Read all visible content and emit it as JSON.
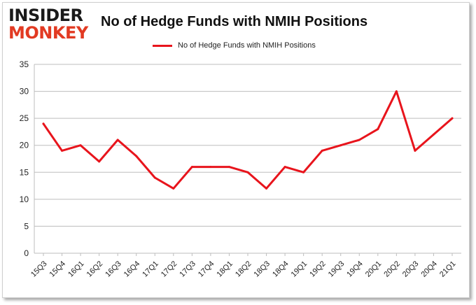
{
  "logo": {
    "line1": "INSIDER",
    "line2": "MONKEY"
  },
  "chart_data": {
    "type": "line",
    "title": "No of Hedge Funds with NMIH Positions",
    "categories": [
      "15Q3",
      "15Q4",
      "16Q1",
      "16Q2",
      "16Q3",
      "16Q4",
      "17Q1",
      "17Q2",
      "17Q3",
      "17Q4",
      "18Q1",
      "18Q2",
      "18Q3",
      "18Q4",
      "19Q1",
      "19Q2",
      "19Q3",
      "19Q4",
      "20Q1",
      "20Q2",
      "20Q3",
      "20Q4",
      "21Q1"
    ],
    "series": [
      {
        "name": "No of Hedge Funds with NMIH  Positions",
        "color": "#e8141c",
        "values": [
          24,
          19,
          20,
          17,
          21,
          18,
          14,
          12,
          16,
          16,
          16,
          15,
          12,
          16,
          15,
          19,
          20,
          21,
          23,
          30,
          19,
          22,
          25
        ]
      }
    ],
    "ylim": [
      0,
      35
    ],
    "yticks": [
      0,
      5,
      10,
      15,
      20,
      25,
      30,
      35
    ],
    "grid": true,
    "legend_position": "top-center",
    "xlabel": "",
    "ylabel": ""
  }
}
